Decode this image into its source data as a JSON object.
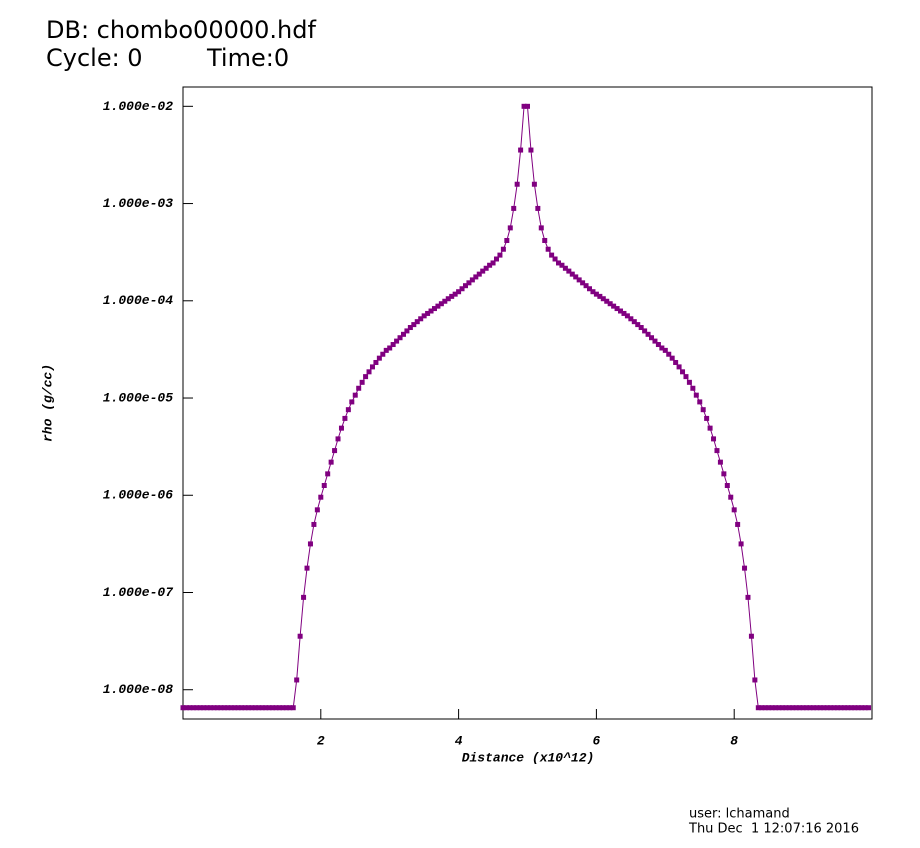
{
  "chart_data": {
    "type": "line",
    "title": "DB: chombo00000.hdf",
    "cycle": "Cycle: 0",
    "time": "Time:0",
    "user": "user: lchamand",
    "date": "Thu Dec  1 12:07:16 2016",
    "xlabel": "Distance (x10^12)",
    "ylabel": "rho (g/cc)",
    "log_y": true,
    "markers": true,
    "xlim": [
      0,
      10
    ],
    "ylim": [
      5e-09,
      0.0158
    ],
    "xticks": [
      2,
      4,
      6,
      8
    ],
    "yticks": [
      {
        "value": 0.01,
        "label": "1.000e-02"
      },
      {
        "value": 0.001,
        "label": "1.000e-03"
      },
      {
        "value": 0.0001,
        "label": "1.000e-04"
      },
      {
        "value": 1e-05,
        "label": "1.000e-05"
      },
      {
        "value": 1e-06,
        "label": "1.000e-06"
      },
      {
        "value": 1e-07,
        "label": "1.000e-07"
      },
      {
        "value": 1e-08,
        "label": "1.000e-08"
      }
    ],
    "x": [
      0,
      0.05,
      0.1,
      0.15,
      0.2,
      0.25,
      0.3,
      0.35,
      0.4,
      0.45,
      0.5,
      0.55,
      0.6,
      0.65,
      0.7,
      0.75,
      0.8,
      0.85,
      0.9,
      0.95,
      1,
      1.05,
      1.1,
      1.15,
      1.2,
      1.25,
      1.3,
      1.35,
      1.4,
      1.45,
      1.5,
      1.55,
      1.6,
      1.65,
      1.7,
      1.75,
      1.8,
      1.85,
      1.9,
      1.95,
      2,
      2.05,
      2.1,
      2.15,
      2.2,
      2.25,
      2.3,
      2.35,
      2.4,
      2.45,
      2.5,
      2.55,
      2.6,
      2.65,
      2.7,
      2.75,
      2.8,
      2.85,
      2.9,
      2.95,
      3,
      3.05,
      3.1,
      3.15,
      3.2,
      3.25,
      3.3,
      3.35,
      3.4,
      3.45,
      3.5,
      3.55,
      3.6,
      3.65,
      3.7,
      3.75,
      3.8,
      3.85,
      3.9,
      3.95,
      4,
      4.05,
      4.1,
      4.15,
      4.2,
      4.25,
      4.3,
      4.35,
      4.4,
      4.45,
      4.5,
      4.55,
      4.6,
      4.65,
      4.7,
      4.75,
      4.8,
      4.85,
      4.9,
      4.95,
      5,
      5.05,
      5.1,
      5.15,
      5.2,
      5.25,
      5.3,
      5.35,
      5.4,
      5.45,
      5.5,
      5.55,
      5.6,
      5.65,
      5.7,
      5.75,
      5.8,
      5.85,
      5.9,
      5.95,
      6,
      6.05,
      6.1,
      6.15,
      6.2,
      6.25,
      6.3,
      6.35,
      6.4,
      6.45,
      6.5,
      6.55,
      6.6,
      6.65,
      6.7,
      6.75,
      6.8,
      6.85,
      6.9,
      6.95,
      7,
      7.05,
      7.1,
      7.15,
      7.2,
      7.25,
      7.3,
      7.35,
      7.4,
      7.45,
      7.5,
      7.55,
      7.6,
      7.65,
      7.7,
      7.75,
      7.8,
      7.85,
      7.9,
      7.95,
      8,
      8.05,
      8.1,
      8.15,
      8.2,
      8.25,
      8.3,
      8.35,
      8.4,
      8.45,
      8.5,
      8.55,
      8.6,
      8.65,
      8.7,
      8.75,
      8.8,
      8.85,
      8.9,
      8.95,
      9,
      9.05,
      9.1,
      9.15,
      9.2,
      9.25,
      9.3,
      9.35,
      9.4,
      9.45,
      9.5,
      9.55,
      9.6,
      9.65,
      9.7,
      9.75,
      9.8,
      9.85,
      9.9,
      9.95
    ],
    "series": [
      {
        "name": "rho",
        "color": "#800080",
        "values": [
          6.53e-09,
          6.53e-09,
          6.53e-09,
          6.53e-09,
          6.53e-09,
          6.53e-09,
          6.53e-09,
          6.53e-09,
          6.53e-09,
          6.53e-09,
          6.53e-09,
          6.53e-09,
          6.53e-09,
          6.53e-09,
          6.53e-09,
          6.53e-09,
          6.53e-09,
          6.53e-09,
          6.53e-09,
          6.53e-09,
          6.53e-09,
          6.53e-09,
          6.53e-09,
          6.53e-09,
          6.53e-09,
          6.53e-09,
          6.53e-09,
          6.53e-09,
          6.53e-09,
          6.53e-09,
          6.53e-09,
          6.53e-09,
          6.53e-09,
          1.26e-08,
          3.55e-08,
          8.91e-08,
          1.78e-07,
          3.16e-07,
          5.01e-07,
          7.08e-07,
          9.55e-07,
          1.26e-06,
          1.66e-06,
          2.19e-06,
          2.88e-06,
          3.8e-06,
          4.9e-06,
          6.17e-06,
          7.59e-06,
          9.12e-06,
          1.07e-05,
          1.26e-05,
          1.45e-05,
          1.66e-05,
          1.86e-05,
          2.09e-05,
          2.32e-05,
          2.57e-05,
          2.82e-05,
          3.09e-05,
          3.27e-05,
          3.55e-05,
          3.85e-05,
          4.17e-05,
          4.52e-05,
          4.9e-05,
          5.31e-05,
          5.69e-05,
          6.1e-05,
          6.53e-05,
          7e-05,
          7.41e-05,
          7.85e-05,
          8.32e-05,
          8.81e-05,
          9.33e-05,
          9.89e-05,
          0.000105,
          0.000111,
          0.000117,
          0.000124,
          0.000133,
          0.000143,
          0.000153,
          0.000164,
          0.000176,
          0.000188,
          0.000202,
          0.000216,
          0.000232,
          0.000245,
          0.000269,
          0.000295,
          0.000339,
          0.000417,
          0.000562,
          0.000891,
          0.00158,
          0.00355,
          0.01,
          0.01,
          0.00355,
          0.00158,
          0.000891,
          0.000562,
          0.000417,
          0.000339,
          0.000295,
          0.000269,
          0.000245,
          0.000232,
          0.000216,
          0.000202,
          0.000188,
          0.000176,
          0.000164,
          0.000153,
          0.000143,
          0.000133,
          0.000124,
          0.000117,
          0.000111,
          0.000105,
          9.89e-05,
          9.33e-05,
          8.81e-05,
          8.32e-05,
          7.85e-05,
          7.41e-05,
          7e-05,
          6.53e-05,
          6.1e-05,
          5.69e-05,
          5.31e-05,
          4.9e-05,
          4.52e-05,
          4.17e-05,
          3.85e-05,
          3.55e-05,
          3.27e-05,
          3.09e-05,
          2.82e-05,
          2.57e-05,
          2.32e-05,
          2.09e-05,
          1.86e-05,
          1.66e-05,
          1.45e-05,
          1.26e-05,
          1.07e-05,
          9.12e-06,
          7.59e-06,
          6.17e-06,
          4.9e-06,
          3.8e-06,
          2.88e-06,
          2.19e-06,
          1.66e-06,
          1.26e-06,
          9.55e-07,
          7.08e-07,
          5.01e-07,
          3.16e-07,
          1.78e-07,
          8.91e-08,
          3.55e-08,
          1.26e-08,
          6.53e-09,
          6.53e-09,
          6.53e-09,
          6.53e-09,
          6.53e-09,
          6.53e-09,
          6.53e-09,
          6.53e-09,
          6.53e-09,
          6.53e-09,
          6.53e-09,
          6.53e-09,
          6.53e-09,
          6.53e-09,
          6.53e-09,
          6.53e-09,
          6.53e-09,
          6.53e-09,
          6.53e-09,
          6.53e-09,
          6.53e-09,
          6.53e-09,
          6.53e-09,
          6.53e-09,
          6.53e-09,
          6.53e-09,
          6.53e-09,
          6.53e-09,
          6.53e-09,
          6.53e-09,
          6.53e-09,
          6.53e-09,
          6.53e-09
        ]
      }
    ]
  }
}
